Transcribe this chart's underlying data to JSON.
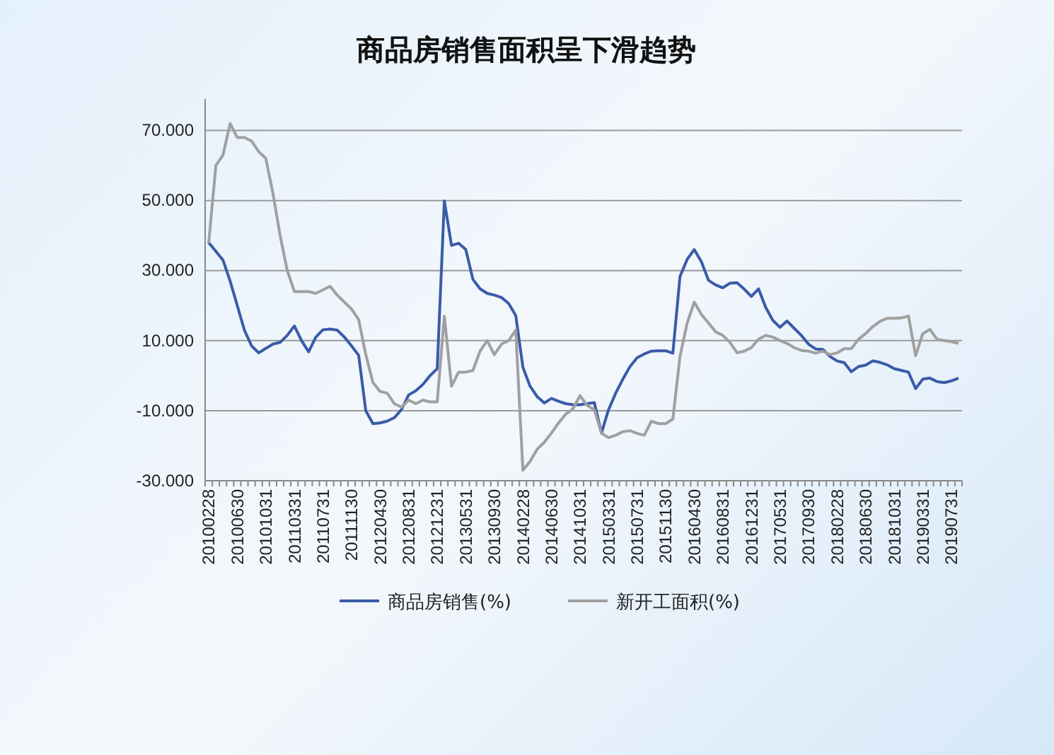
{
  "chart_data": {
    "type": "line",
    "title": "商品房销售面积呈下滑趋势",
    "categories": [
      "20100228",
      null,
      null,
      null,
      "20100630",
      null,
      null,
      null,
      "20101031",
      null,
      null,
      null,
      "20110331",
      null,
      null,
      null,
      "20110731",
      null,
      null,
      null,
      "20111130",
      null,
      null,
      null,
      "20120430",
      null,
      null,
      null,
      "20120831",
      null,
      null,
      null,
      "20121231",
      null,
      null,
      null,
      "20130531",
      null,
      null,
      null,
      "20130930",
      null,
      null,
      null,
      "20140228",
      null,
      null,
      null,
      "20140630",
      null,
      null,
      null,
      "20141031",
      null,
      null,
      null,
      "20150331",
      null,
      null,
      null,
      "20150731",
      null,
      null,
      null,
      "20151130",
      null,
      null,
      null,
      "20160430",
      null,
      null,
      null,
      "20160831",
      null,
      null,
      null,
      "20161231",
      null,
      null,
      null,
      "20170531",
      null,
      null,
      null,
      "20170930",
      null,
      null,
      null,
      "20180228",
      null,
      null,
      null,
      "20180630",
      null,
      null,
      null,
      "20181031",
      null,
      null,
      null,
      "20190331",
      null,
      null,
      null,
      "20190731",
      null
    ],
    "series": [
      {
        "name": "商品房销售(%)",
        "color": "#3a5ba8",
        "values": [
          38,
          35.5,
          33,
          27,
          20,
          13,
          8.5,
          6.5,
          7.8,
          9,
          9.5,
          11.5,
          14.2,
          10,
          6.8,
          11,
          13.1,
          13.3,
          13,
          11,
          8.5,
          5.8,
          -10,
          -13.7,
          -13.5,
          -13,
          -12,
          -9.7,
          -5.5,
          -4.3,
          -2.5,
          0,
          2,
          49.9,
          37.2,
          37.8,
          36,
          27.5,
          24.8,
          23.5,
          23,
          22.3,
          20.6,
          17.2,
          2.4,
          -3,
          -6,
          -7.8,
          -6.5,
          -7.3,
          -8,
          -8.3,
          -8.3,
          -8,
          -7.7,
          -16.4,
          -9.7,
          -5,
          -1,
          2.6,
          5.1,
          6.2,
          7,
          7.1,
          7.1,
          6.4,
          28.3,
          33.2,
          36,
          32.5,
          27.2,
          25.9,
          25.1,
          26.4,
          26.5,
          24.7,
          22.6,
          24.8,
          19.5,
          15.8,
          13.8,
          15.6,
          13.5,
          11.5,
          9,
          7.6,
          7.5,
          5.5,
          4.2,
          3.7,
          1.1,
          2.6,
          3,
          4.2,
          3.8,
          3.1,
          2,
          1.5,
          1,
          -3.7,
          -1,
          -0.7,
          -1.7,
          -2,
          -1.5,
          -0.7
        ]
      },
      {
        "name": "新开工面积(%)",
        "color": "#a0a0a0",
        "values": [
          37.8,
          60,
          63,
          72,
          68,
          68,
          67,
          64,
          62,
          52,
          40,
          30,
          24,
          24,
          24,
          23.5,
          24.5,
          25.5,
          23,
          21,
          19,
          16,
          6,
          -2,
          -4.5,
          -5,
          -8,
          -9,
          -7,
          -8,
          -7,
          -7.5,
          -7.5,
          17,
          -3,
          1,
          1,
          1.5,
          7,
          10,
          6,
          9,
          10,
          13,
          -27,
          -24.5,
          -21,
          -19,
          -16.4,
          -13.5,
          -11,
          -9.5,
          -5.7,
          -8.5,
          -9.7,
          -16.4,
          -17.7,
          -17,
          -16,
          -15.7,
          -16.5,
          -17,
          -13,
          -13.7,
          -13.7,
          -12.4,
          5.5,
          15,
          21,
          17.5,
          15,
          12.5,
          11.5,
          9.5,
          6.5,
          7,
          8,
          10.4,
          11.5,
          11,
          10,
          9.2,
          8,
          7.2,
          7,
          6.4,
          7,
          6,
          6.5,
          7.7,
          7.7,
          10.4,
          12,
          14,
          15.5,
          16.4,
          16.4,
          16.5,
          17,
          5.7,
          12,
          13.2,
          10.4,
          10,
          9.7,
          9.2
        ]
      }
    ],
    "ylim": [
      -30,
      79
    ],
    "yticks": [
      {
        "value": -30,
        "label": "-30.000"
      },
      {
        "value": -10,
        "label": "-10.000"
      },
      {
        "value": 10,
        "label": "10.000"
      },
      {
        "value": 30,
        "label": "30.000"
      },
      {
        "value": 50,
        "label": "50.000"
      },
      {
        "value": 70,
        "label": "70.000"
      }
    ],
    "grid": "y",
    "legend": "bottom",
    "marker": "none",
    "line_style": "solid"
  }
}
